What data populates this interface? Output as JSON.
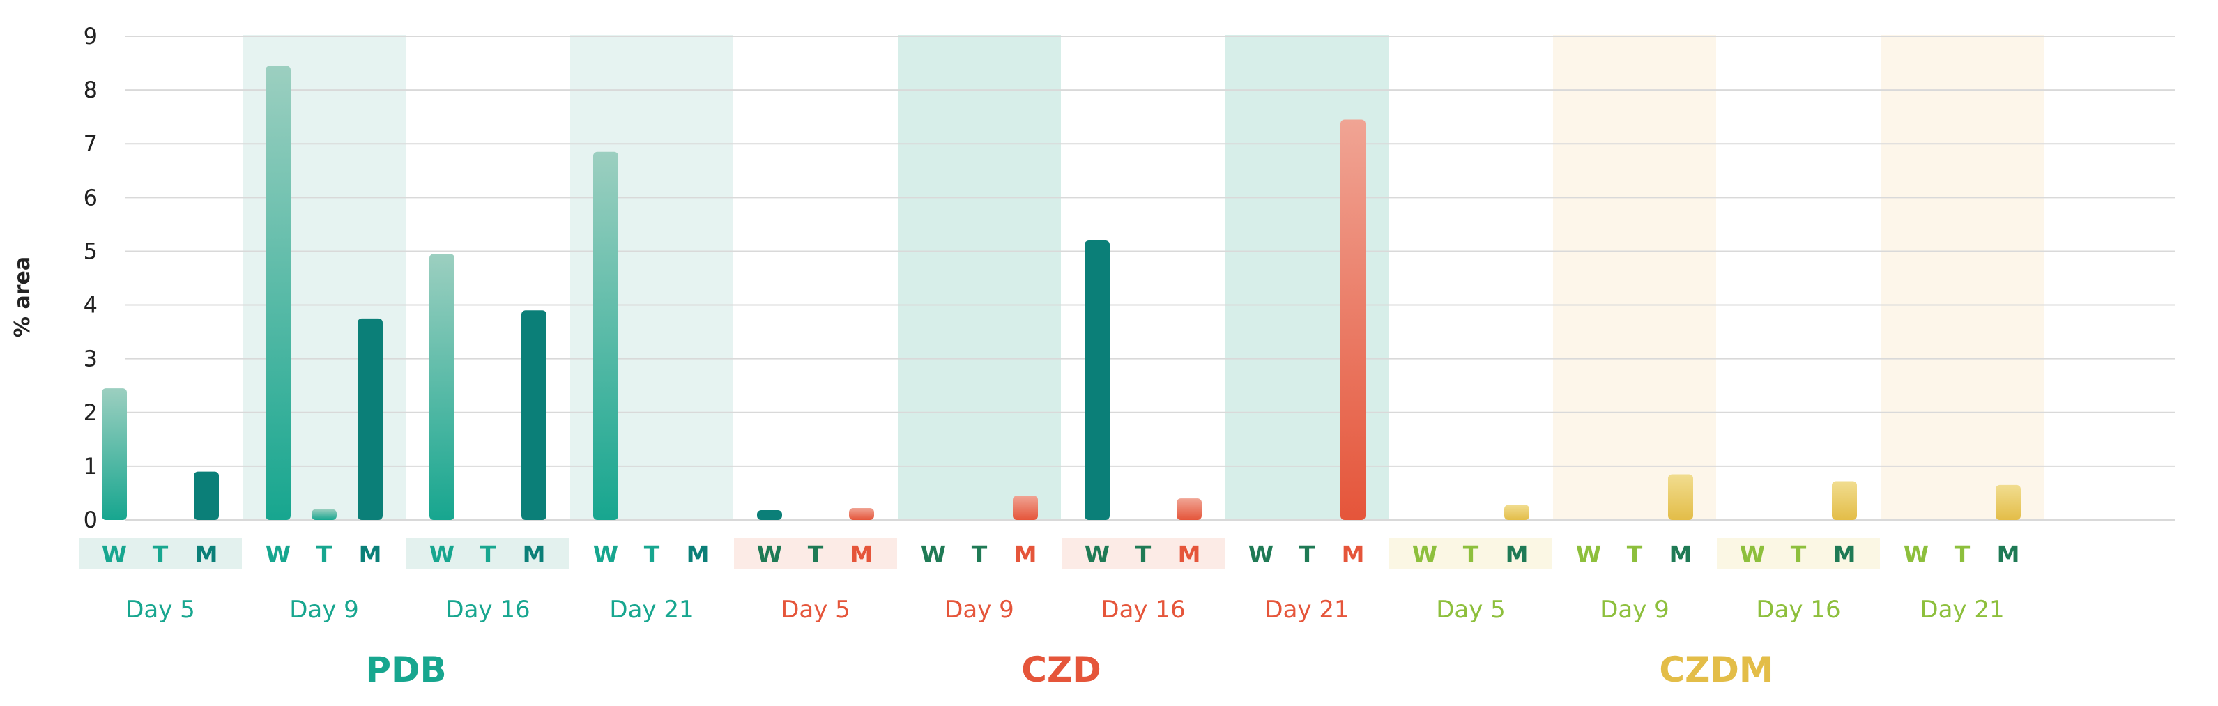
{
  "chart_data": {
    "type": "bar",
    "ylabel": "% area",
    "ylim": [
      0,
      9
    ],
    "yticks": [
      "0",
      "1",
      "2",
      "3",
      "4",
      "5",
      "6",
      "7",
      "8",
      "9"
    ],
    "grid": true,
    "groups": [
      {
        "name": "PDB",
        "color": "#17a68f",
        "days": [
          {
            "label": "Day 5",
            "letters": [
              "W",
              "T",
              "M"
            ],
            "values": [
              2.45,
              0,
              0.9
            ]
          },
          {
            "label": "Day 9",
            "letters": [
              "W",
              "T",
              "M"
            ],
            "values": [
              8.45,
              0.2,
              3.75
            ]
          },
          {
            "label": "Day 16",
            "letters": [
              "W",
              "T",
              "M"
            ],
            "values": [
              4.95,
              0,
              3.9
            ]
          },
          {
            "label": "Day 21",
            "letters": [
              "W",
              "T",
              "M"
            ],
            "values": [
              6.85,
              0,
              0
            ]
          }
        ]
      },
      {
        "name": "CZD",
        "color": "#e5553a",
        "days": [
          {
            "label": "Day 5",
            "letters": [
              "W",
              "T",
              "M"
            ],
            "values": [
              0.18,
              0,
              0.22
            ]
          },
          {
            "label": "Day 9",
            "letters": [
              "W",
              "T",
              "M"
            ],
            "values": [
              0,
              0,
              0.45
            ]
          },
          {
            "label": "Day 16",
            "letters": [
              "W",
              "T",
              "M"
            ],
            "values": [
              5.2,
              0,
              0.4
            ]
          },
          {
            "label": "Day 21",
            "letters": [
              "W",
              "T",
              "M"
            ],
            "values": [
              0,
              0,
              7.45
            ]
          }
        ]
      },
      {
        "name": "CZDM",
        "color": "#e3bd48",
        "days": [
          {
            "label": "Day 5",
            "letters": [
              "W",
              "T",
              "M"
            ],
            "values": [
              0,
              0,
              0.28
            ]
          },
          {
            "label": "Day 9",
            "letters": [
              "W",
              "T",
              "M"
            ],
            "values": [
              0,
              0,
              0.85
            ]
          },
          {
            "label": "Day 16",
            "letters": [
              "W",
              "T",
              "M"
            ],
            "values": [
              0,
              0,
              0.72
            ]
          },
          {
            "label": "Day 21",
            "letters": [
              "W",
              "T",
              "M"
            ],
            "values": [
              0,
              0,
              0.65
            ]
          }
        ]
      }
    ],
    "colors": {
      "teal_light": "#9ccfc0",
      "teal": "#17a68f",
      "teal_dark": "#0b7f78",
      "red_light": "#f0a494",
      "red": "#e5553a",
      "gold_light": "#f1dd90",
      "gold": "#e3bd48",
      "letter_w_green": "#8dbf3c",
      "letter_dark_green": "#1f7a55",
      "grid": "#d9d9d9",
      "band_teal": "#e6f3f1",
      "band_teal_strong": "#d7eee9",
      "band_gold": "#fdf6ea",
      "chip_teal": "#e3f1ee",
      "chip_red": "#fcebe6",
      "chip_gold": "#fbf7e4"
    }
  }
}
